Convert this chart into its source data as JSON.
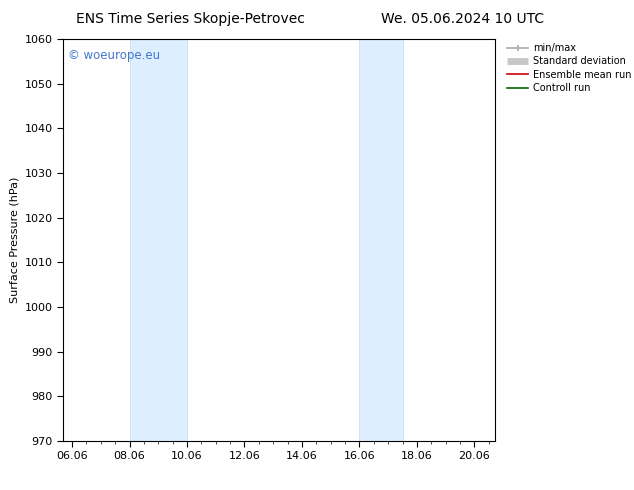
{
  "title_left": "ENS Time Series Skopje-Petrovec",
  "title_right": "We. 05.06.2024 10 UTC",
  "ylabel": "Surface Pressure (hPa)",
  "ylim": [
    970,
    1060
  ],
  "yticks": [
    970,
    980,
    990,
    1000,
    1010,
    1020,
    1030,
    1040,
    1050,
    1060
  ],
  "xtick_labels": [
    "06.06",
    "08.06",
    "10.06",
    "12.06",
    "14.06",
    "16.06",
    "18.06",
    "20.06"
  ],
  "xtick_positions": [
    0,
    2,
    4,
    6,
    8,
    10,
    12,
    14
  ],
  "xlim": [
    -0.3,
    14.7
  ],
  "shaded_bands": [
    {
      "x_start": 2.0,
      "x_end": 4.0
    },
    {
      "x_start": 10.0,
      "x_end": 11.5
    }
  ],
  "shaded_color": "#ddeeff",
  "shaded_edge_color": "#c5daf0",
  "watermark_text": "© woeurope.eu",
  "watermark_color": "#4477cc",
  "legend_entries": [
    {
      "label": "min/max",
      "color": "#aaaaaa",
      "linewidth": 1.2
    },
    {
      "label": "Standard deviation",
      "color": "#c8c8c8",
      "linewidth": 5
    },
    {
      "label": "Ensemble mean run",
      "color": "#cc0000",
      "linewidth": 1.2
    },
    {
      "label": "Controll run",
      "color": "#006600",
      "linewidth": 1.2
    }
  ],
  "background_color": "#ffffff",
  "title_fontsize": 10,
  "axis_fontsize": 8,
  "watermark_fontsize": 8.5,
  "tick_label_fontsize": 8
}
